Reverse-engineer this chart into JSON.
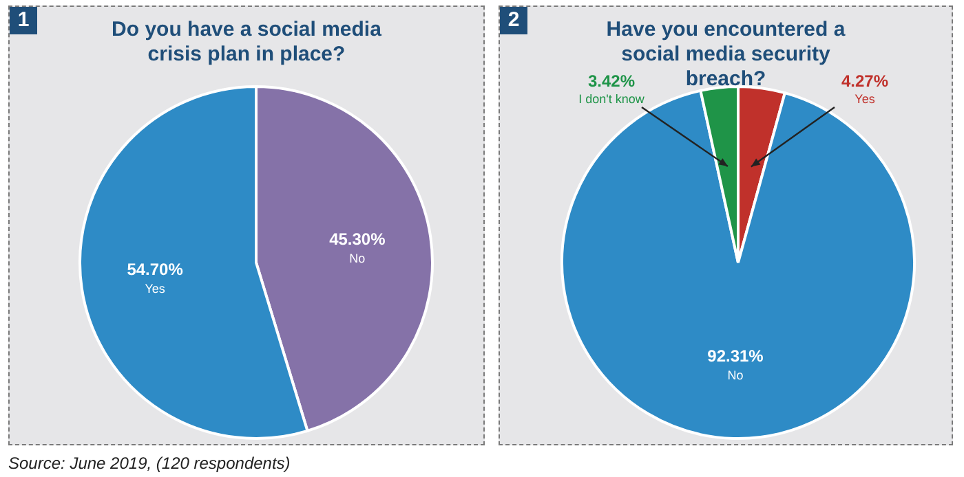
{
  "chart_data": [
    {
      "type": "pie",
      "title": "Do you have a social media crisis plan in place?",
      "categories": [
        "No",
        "Yes"
      ],
      "values": [
        45.3,
        54.7
      ],
      "colors": [
        "#8572a8",
        "#2e8bc6"
      ],
      "value_labels": [
        "45.30%",
        "54.70%"
      ],
      "legend": false,
      "annotations": [
        "1",
        "Source: June 2019, (120 respondents)"
      ]
    },
    {
      "type": "pie",
      "title": "Have you encountered a social media security breach?",
      "categories": [
        "Yes",
        "No",
        "I don't know"
      ],
      "values": [
        4.27,
        92.31,
        3.42
      ],
      "colors": [
        "#c0312b",
        "#2e8bc6",
        "#1f9448"
      ],
      "value_labels": [
        "4.27%",
        "92.31%",
        "3.42%"
      ],
      "legend": false,
      "annotations": [
        "2"
      ]
    }
  ]
}
